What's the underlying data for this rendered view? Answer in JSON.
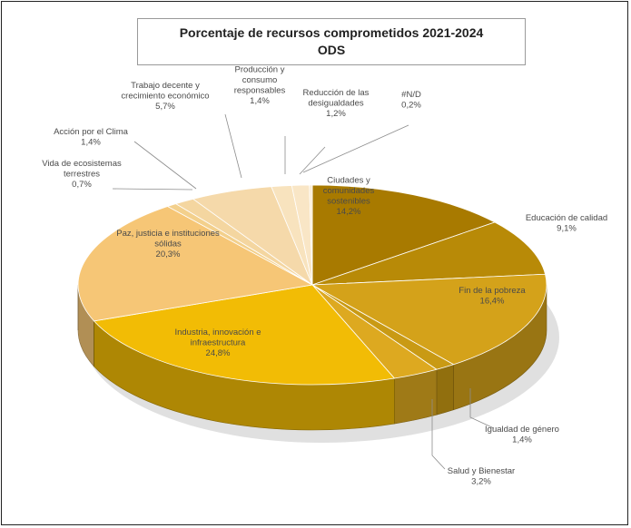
{
  "chart_data": {
    "type": "pie",
    "style": "3d-exploded-pie",
    "title": "Porcentaje de recursos comprometidos 2021-2024",
    "subtitle": "ODS",
    "legend": "none",
    "slices": [
      {
        "lines": [
          "Ciudades y",
          "comunidades",
          "sostenibles"
        ],
        "value_label": "14,2%",
        "value": 14.2,
        "color": "#A87A00"
      },
      {
        "lines": [
          "Educación de calidad"
        ],
        "value_label": "9,1%",
        "value": 9.1,
        "color": "#B88A07"
      },
      {
        "lines": [
          "Fin de la pobreza"
        ],
        "value_label": "16,4%",
        "value": 16.4,
        "color": "#D4A21A"
      },
      {
        "lines": [
          "Igualdad de género"
        ],
        "value_label": "1,4%",
        "value": 1.4,
        "color": "#C99A14"
      },
      {
        "lines": [
          "Salud y Bienestar"
        ],
        "value_label": "3,2%",
        "value": 3.2,
        "color": "#DDA920"
      },
      {
        "lines": [
          "Industria, innovación e",
          "infraestructura"
        ],
        "value_label": "24,8%",
        "value": 24.8,
        "color": "#F2BC05"
      },
      {
        "lines": [
          "Paz, justicia e instituciones",
          "sólidas"
        ],
        "value_label": "20,3%",
        "value": 20.3,
        "color": "#F6C676"
      },
      {
        "lines": [
          "Vida de ecosistemas",
          "terrestres"
        ],
        "value_label": "0,7%",
        "value": 0.7,
        "color": "#F3D08C"
      },
      {
        "lines": [
          "Acción por el Clima"
        ],
        "value_label": "1,4%",
        "value": 1.4,
        "color": "#F4D6A0"
      },
      {
        "lines": [
          "Trabajo decente y",
          "crecimiento económico"
        ],
        "value_label": "5,7%",
        "value": 5.7,
        "color": "#F5D9AA"
      },
      {
        "lines": [
          "Producción y",
          "consumo",
          "responsables"
        ],
        "value_label": "1,4%",
        "value": 1.4,
        "color": "#F8E3BE"
      },
      {
        "lines": [
          "Reducción de las",
          "desigualdades"
        ],
        "value_label": "1,2%",
        "value": 1.2,
        "color": "#F9E6C6"
      },
      {
        "lines": [
          "#N/D"
        ],
        "value_label": "0,2%",
        "value": 0.2,
        "color": "#FBECD2"
      }
    ]
  }
}
